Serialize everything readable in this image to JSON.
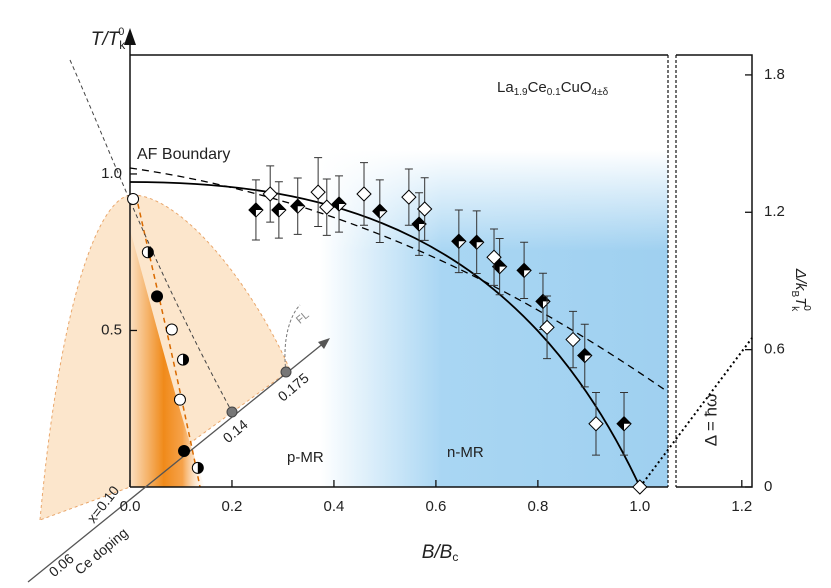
{
  "chart_data": {
    "type": "scatter",
    "formula": [
      "La",
      "1.9",
      "Ce",
      "0.1",
      "CuO",
      "4±δ"
    ],
    "x_label": [
      "B/B",
      "c"
    ],
    "y_label": [
      "T/T",
      "k",
      "0"
    ],
    "y2_label": [
      "Δ/k",
      "B",
      "T",
      "k",
      "0"
    ],
    "annotations": [
      "AF Boundary",
      "p-MR",
      "n-MR",
      "FL",
      "Δ = ħω"
    ],
    "doping_axis": {
      "title": "Ce doping",
      "labels": [
        "0.06",
        "x=0.10",
        "0.14",
        "0.175"
      ]
    },
    "xlim": [
      0,
      1.22
    ],
    "xticks": [
      {
        "value": 0,
        "label": "0.0"
      },
      0.2,
      0.4,
      0.6,
      0.8,
      {
        "value": 1,
        "label": "1.0"
      },
      1.2
    ],
    "ylim": [
      0,
      1.38
    ],
    "yticks": [
      0.5,
      {
        "value": 1,
        "label": "1.0"
      }
    ],
    "y2lim": [
      0,
      1.887
    ],
    "y2ticks": [
      0,
      0.6,
      1.2,
      1.8
    ],
    "series": [
      {
        "marker": "half-diamond",
        "color": "#000000",
        "x": [
          0.247,
          0.292,
          0.329,
          0.41,
          0.49,
          0.567,
          0.645,
          0.68,
          0.725,
          0.773,
          0.81,
          0.892,
          0.969
        ],
        "values": [
          0.885,
          0.885,
          0.897,
          0.904,
          0.881,
          0.84,
          0.785,
          0.782,
          0.704,
          0.692,
          0.593,
          0.42,
          0.202
        ],
        "errors": [
          0.096,
          0.09,
          0.09,
          0.09,
          0.1,
          0.1,
          0.1,
          0.1,
          0.09,
          0.09,
          0.09,
          0.1,
          0.1
        ]
      },
      {
        "marker": "open-diamond",
        "color": "#000000",
        "x": [
          0.275,
          0.369,
          0.386,
          0.459,
          0.547,
          0.578,
          0.714,
          0.818,
          0.869,
          0.914,
          1.0
        ],
        "values": [
          0.936,
          0.942,
          0.894,
          0.936,
          0.926,
          0.888,
          0.734,
          0.51,
          0.471,
          0.202,
          0
        ],
        "errors": [
          0.09,
          0.11,
          0.09,
          0.1,
          0.09,
          0.1,
          0.09,
          0.1,
          0.09,
          0.1,
          0
        ]
      },
      {
        "marker": "open-circle",
        "color": "#000000",
        "x": [
          0.006,
          0.082,
          0.098
        ],
        "values": [
          0.92,
          0.503,
          0.279
        ]
      },
      {
        "marker": "half-circle",
        "color": "#000000",
        "x": [
          0.035,
          0.104,
          0.133
        ],
        "values": [
          0.75,
          0.407,
          0.061
        ]
      },
      {
        "marker": "filled-circle",
        "color": "#000000",
        "x": [
          0.053,
          0.106
        ],
        "values": [
          0.609,
          0.115
        ]
      }
    ]
  }
}
